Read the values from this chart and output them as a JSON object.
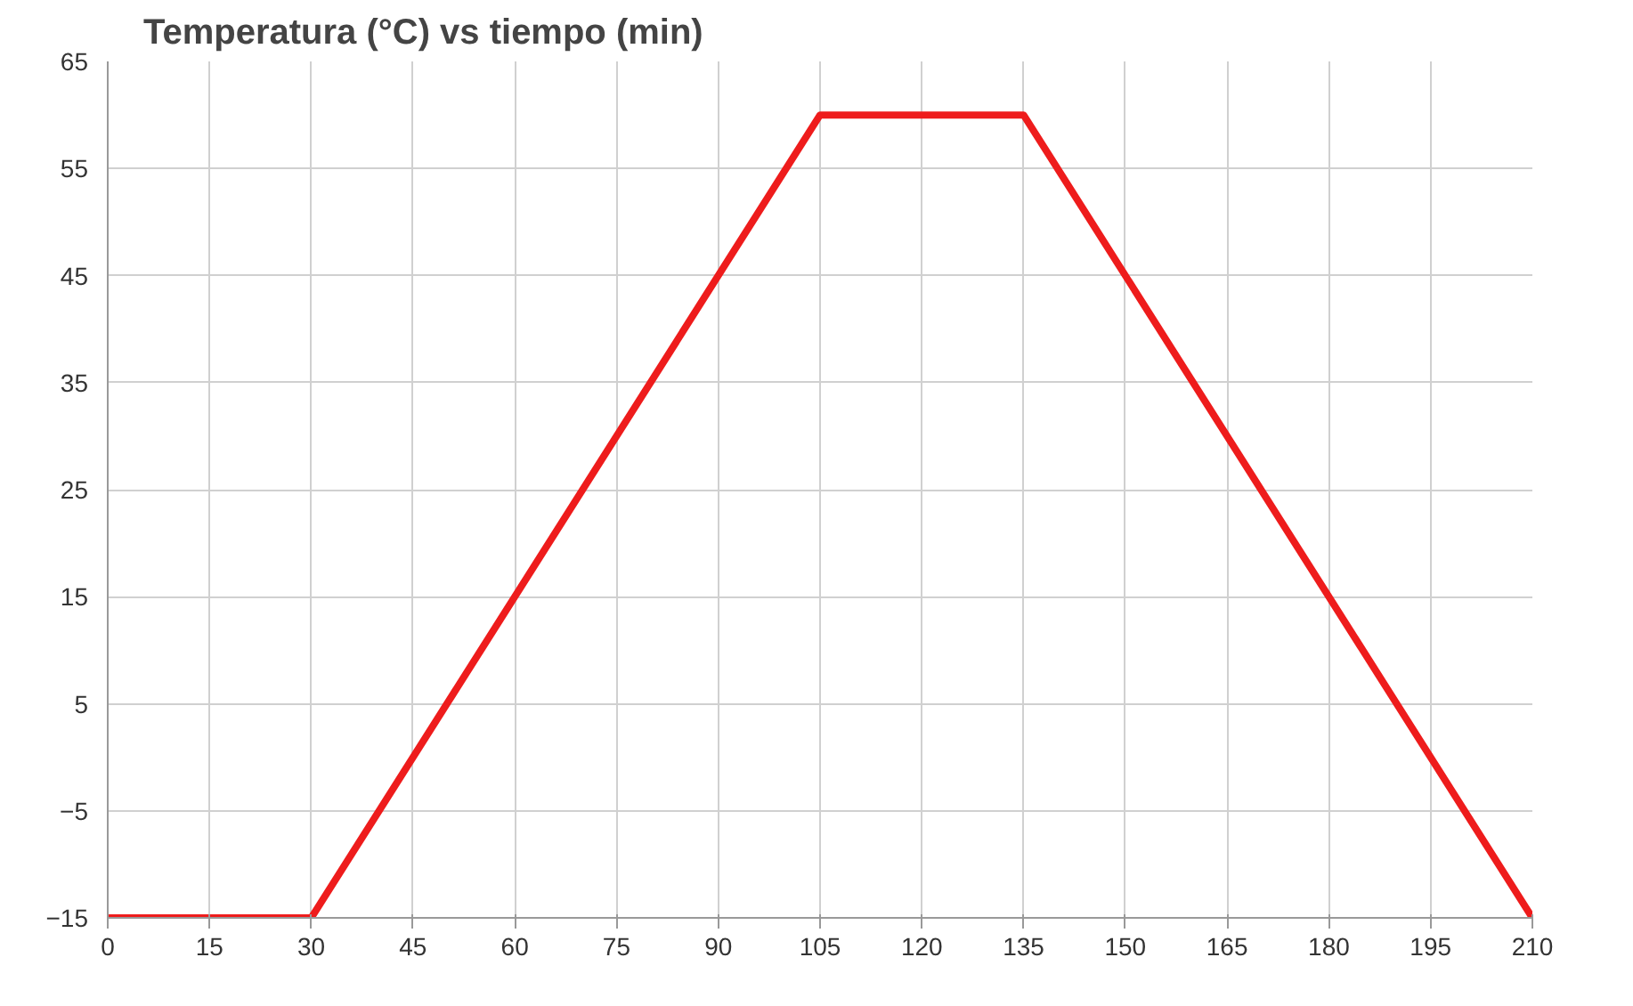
{
  "chart_data": {
    "type": "line",
    "title": "Temperatura (°C) vs tiempo (min)",
    "x": [
      0,
      30,
      105,
      135,
      210
    ],
    "series": [
      {
        "color": "#ee1c1c",
        "values": [
          -15,
          -15,
          60,
          60,
          -15
        ]
      }
    ],
    "xlim": [
      0,
      210
    ],
    "xticks": [
      0,
      15,
      30,
      45,
      60,
      75,
      90,
      105,
      120,
      135,
      150,
      165,
      180,
      195,
      210
    ],
    "ylim": [
      -15,
      65
    ],
    "yticks": [
      -15,
      -5,
      5,
      15,
      25,
      35,
      45,
      55,
      65
    ],
    "grid": true,
    "marker": "none",
    "line_style": "solid"
  }
}
